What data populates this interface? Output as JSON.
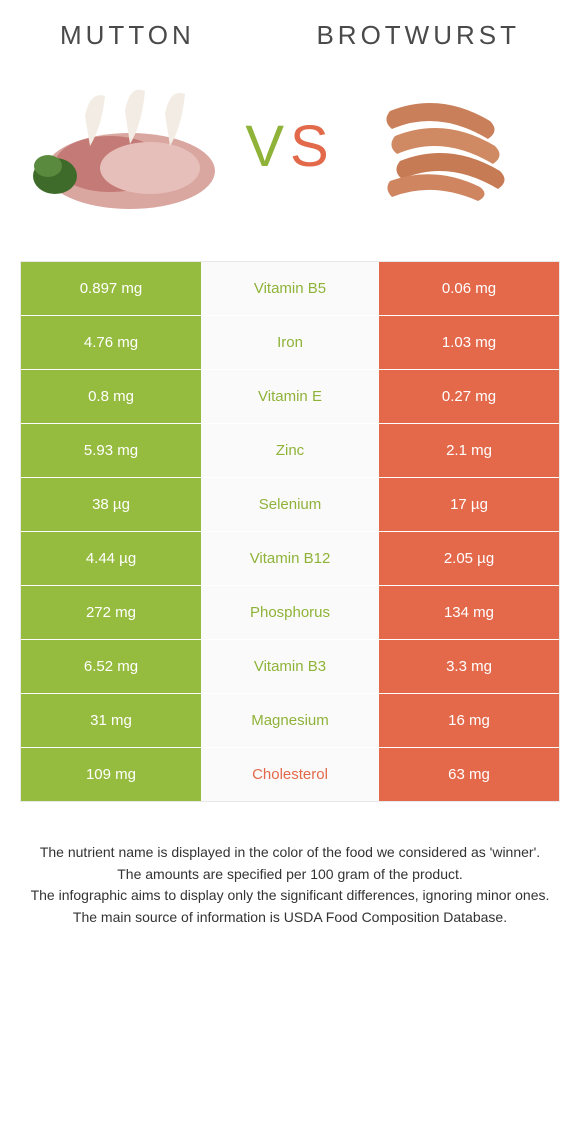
{
  "header": {
    "left_title": "MUTTON",
    "right_title": "BROTWURST",
    "vs_v": "V",
    "vs_s": "S"
  },
  "colors": {
    "green": "#96bc3f",
    "orange": "#e4694b",
    "green_text": "#8fb339",
    "orange_text": "#e4694b",
    "background": "#ffffff",
    "mid_bg": "#fafafa"
  },
  "table": {
    "rows": [
      {
        "left": "0.897 mg",
        "nutrient": "Vitamin B5",
        "right": "0.06 mg",
        "winner": "left"
      },
      {
        "left": "4.76 mg",
        "nutrient": "Iron",
        "right": "1.03 mg",
        "winner": "left"
      },
      {
        "left": "0.8 mg",
        "nutrient": "Vitamin E",
        "right": "0.27 mg",
        "winner": "left"
      },
      {
        "left": "5.93 mg",
        "nutrient": "Zinc",
        "right": "2.1 mg",
        "winner": "left"
      },
      {
        "left": "38 µg",
        "nutrient": "Selenium",
        "right": "17 µg",
        "winner": "left"
      },
      {
        "left": "4.44 µg",
        "nutrient": "Vitamin B12",
        "right": "2.05 µg",
        "winner": "left"
      },
      {
        "left": "272 mg",
        "nutrient": "Phosphorus",
        "right": "134 mg",
        "winner": "left"
      },
      {
        "left": "6.52 mg",
        "nutrient": "Vitamin B3",
        "right": "3.3 mg",
        "winner": "left"
      },
      {
        "left": "31 mg",
        "nutrient": "Magnesium",
        "right": "16 mg",
        "winner": "left"
      },
      {
        "left": "109 mg",
        "nutrient": "Cholesterol",
        "right": "63 mg",
        "winner": "right"
      }
    ]
  },
  "footnote": {
    "line1": "The nutrient name is displayed in the color of the food we considered as 'winner'.",
    "line2": "The amounts are specified per 100 gram of the product.",
    "line3": "The infographic aims to display only the significant differences, ignoring minor ones.",
    "line4": "The main source of information is USDA Food Composition Database."
  }
}
